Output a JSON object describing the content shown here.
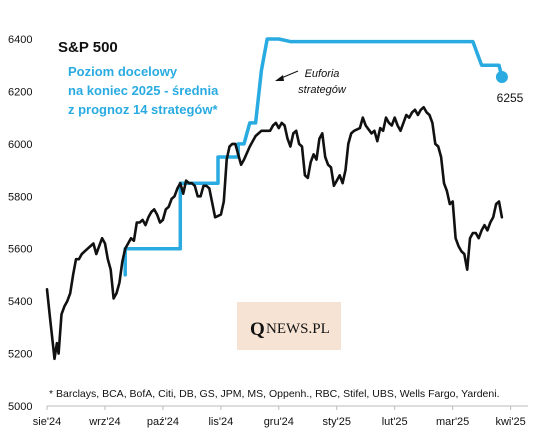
{
  "chart_data": {
    "type": "line",
    "title": "S&P 500",
    "subtitle_lines": [
      "Poziom docelowy",
      "na koniec 2025 - średnia",
      "z prognoz 14 strategów*"
    ],
    "ylim": [
      5000,
      6400
    ],
    "yticks": [
      5000,
      5200,
      5400,
      5600,
      5800,
      6000,
      6200,
      6400
    ],
    "xlim": [
      0,
      8.3
    ],
    "xticks": [
      {
        "pos": 0,
        "label": "sie'24"
      },
      {
        "pos": 1,
        "label": "wrz'24"
      },
      {
        "pos": 2,
        "label": "paź'24"
      },
      {
        "pos": 3,
        "label": "lis'24"
      },
      {
        "pos": 4,
        "label": "gru'24"
      },
      {
        "pos": 5,
        "label": "sty'25"
      },
      {
        "pos": 6,
        "label": "lut'25"
      },
      {
        "pos": 7,
        "label": "mar'25"
      },
      {
        "pos": 8,
        "label": "kwi'25"
      }
    ],
    "series": [
      {
        "color": "#111111",
        "points": [
          [
            0.0,
            5445
          ],
          [
            0.05,
            5340
          ],
          [
            0.1,
            5240
          ],
          [
            0.13,
            5180
          ],
          [
            0.17,
            5240
          ],
          [
            0.2,
            5200
          ],
          [
            0.25,
            5350
          ],
          [
            0.3,
            5380
          ],
          [
            0.35,
            5400
          ],
          [
            0.4,
            5430
          ],
          [
            0.45,
            5500
          ],
          [
            0.5,
            5560
          ],
          [
            0.55,
            5560
          ],
          [
            0.6,
            5580
          ],
          [
            0.65,
            5590
          ],
          [
            0.7,
            5600
          ],
          [
            0.8,
            5620
          ],
          [
            0.85,
            5580
          ],
          [
            0.9,
            5610
          ],
          [
            0.95,
            5640
          ],
          [
            1.0,
            5620
          ],
          [
            1.05,
            5560
          ],
          [
            1.1,
            5520
          ],
          [
            1.15,
            5410
          ],
          [
            1.2,
            5430
          ],
          [
            1.25,
            5470
          ],
          [
            1.3,
            5550
          ],
          [
            1.35,
            5600
          ],
          [
            1.4,
            5620
          ],
          [
            1.45,
            5640
          ],
          [
            1.5,
            5630
          ],
          [
            1.55,
            5700
          ],
          [
            1.6,
            5700
          ],
          [
            1.65,
            5710
          ],
          [
            1.7,
            5690
          ],
          [
            1.75,
            5720
          ],
          [
            1.8,
            5740
          ],
          [
            1.85,
            5750
          ],
          [
            1.9,
            5730
          ],
          [
            1.95,
            5700
          ],
          [
            2.0,
            5710
          ],
          [
            2.05,
            5750
          ],
          [
            2.1,
            5760
          ],
          [
            2.15,
            5790
          ],
          [
            2.2,
            5800
          ],
          [
            2.25,
            5830
          ],
          [
            2.3,
            5850
          ],
          [
            2.35,
            5810
          ],
          [
            2.4,
            5860
          ],
          [
            2.45,
            5850
          ],
          [
            2.5,
            5850
          ],
          [
            2.55,
            5840
          ],
          [
            2.6,
            5800
          ],
          [
            2.65,
            5800
          ],
          [
            2.7,
            5840
          ],
          [
            2.75,
            5840
          ],
          [
            2.8,
            5830
          ],
          [
            2.9,
            5720
          ],
          [
            3.0,
            5730
          ],
          [
            3.05,
            5780
          ],
          [
            3.1,
            5940
          ],
          [
            3.15,
            5990
          ],
          [
            3.2,
            6000
          ],
          [
            3.25,
            6000
          ],
          [
            3.3,
            5960
          ],
          [
            3.35,
            5920
          ],
          [
            3.4,
            5940
          ],
          [
            3.5,
            5990
          ],
          [
            3.6,
            6030
          ],
          [
            3.7,
            6050
          ],
          [
            3.8,
            6050
          ],
          [
            3.85,
            6050
          ],
          [
            3.9,
            6070
          ],
          [
            3.95,
            6080
          ],
          [
            4.0,
            6060
          ],
          [
            4.05,
            6080
          ],
          [
            4.1,
            6070
          ],
          [
            4.15,
            6020
          ],
          [
            4.2,
            5990
          ],
          [
            4.25,
            6040
          ],
          [
            4.3,
            6050
          ],
          [
            4.35,
            6000
          ],
          [
            4.4,
            5990
          ],
          [
            4.45,
            5880
          ],
          [
            4.5,
            5870
          ],
          [
            4.55,
            5930
          ],
          [
            4.6,
            5960
          ],
          [
            4.65,
            5940
          ],
          [
            4.7,
            6020
          ],
          [
            4.75,
            6040
          ],
          [
            4.8,
            5950
          ],
          [
            4.85,
            5920
          ],
          [
            4.9,
            5910
          ],
          [
            4.95,
            5840
          ],
          [
            5.0,
            5860
          ],
          [
            5.05,
            5880
          ],
          [
            5.1,
            5850
          ],
          [
            5.15,
            5900
          ],
          [
            5.2,
            6000
          ],
          [
            5.25,
            6040
          ],
          [
            5.3,
            6050
          ],
          [
            5.4,
            6060
          ],
          [
            5.45,
            6100
          ],
          [
            5.5,
            6070
          ],
          [
            5.6,
            6040
          ],
          [
            5.65,
            6050
          ],
          [
            5.7,
            6010
          ],
          [
            5.75,
            6060
          ],
          [
            5.8,
            6050
          ],
          [
            5.85,
            6100
          ],
          [
            5.9,
            6080
          ],
          [
            5.95,
            6070
          ],
          [
            6.0,
            6100
          ],
          [
            6.05,
            6070
          ],
          [
            6.1,
            6050
          ],
          [
            6.15,
            6080
          ],
          [
            6.2,
            6110
          ],
          [
            6.25,
            6100
          ],
          [
            6.3,
            6120
          ],
          [
            6.35,
            6130
          ],
          [
            6.4,
            6110
          ],
          [
            6.45,
            6130
          ],
          [
            6.5,
            6140
          ],
          [
            6.55,
            6120
          ],
          [
            6.6,
            6110
          ],
          [
            6.65,
            6080
          ],
          [
            6.7,
            6000
          ],
          [
            6.75,
            5990
          ],
          [
            6.8,
            5950
          ],
          [
            6.85,
            5850
          ],
          [
            6.9,
            5820
          ],
          [
            6.95,
            5770
          ],
          [
            7.0,
            5780
          ],
          [
            7.05,
            5640
          ],
          [
            7.1,
            5610
          ],
          [
            7.15,
            5590
          ],
          [
            7.2,
            5580
          ],
          [
            7.25,
            5520
          ],
          [
            7.3,
            5640
          ],
          [
            7.35,
            5660
          ],
          [
            7.4,
            5660
          ],
          [
            7.45,
            5640
          ],
          [
            7.5,
            5670
          ],
          [
            7.55,
            5690
          ],
          [
            7.6,
            5670
          ],
          [
            7.65,
            5700
          ],
          [
            7.7,
            5720
          ],
          [
            7.75,
            5770
          ],
          [
            7.8,
            5780
          ],
          [
            7.85,
            5720
          ]
        ]
      },
      {
        "color": "#29abe2",
        "points": [
          [
            1.35,
            5500
          ],
          [
            1.35,
            5600
          ],
          [
            2.3,
            5600
          ],
          [
            2.3,
            5850
          ],
          [
            2.95,
            5850
          ],
          [
            2.95,
            5950
          ],
          [
            3.3,
            5950
          ],
          [
            3.3,
            6000
          ],
          [
            3.4,
            6000
          ],
          [
            3.5,
            6080
          ],
          [
            3.6,
            6080
          ],
          [
            3.7,
            6280
          ],
          [
            3.75,
            6340
          ],
          [
            3.8,
            6400
          ],
          [
            4.0,
            6400
          ],
          [
            4.2,
            6390
          ],
          [
            5.0,
            6390
          ],
          [
            6.0,
            6390
          ],
          [
            7.0,
            6390
          ],
          [
            7.35,
            6390
          ],
          [
            7.45,
            6330
          ],
          [
            7.5,
            6300
          ],
          [
            7.8,
            6300
          ],
          [
            7.85,
            6255
          ]
        ],
        "end_value_label": "6255"
      }
    ],
    "annotations": {
      "euphoria_lines": [
        "Euforia",
        "strategów"
      ]
    },
    "footnote": "* Barclays, BCA, BofA, Citi, DB, GS, JPM, MS, Oppenh., RBC, Stifel, UBS, Wells Fargo, Yardeni."
  },
  "logo": {
    "q": "Q",
    "rest": "NEWS.PL",
    "bg_color": "#f7e3d3"
  }
}
